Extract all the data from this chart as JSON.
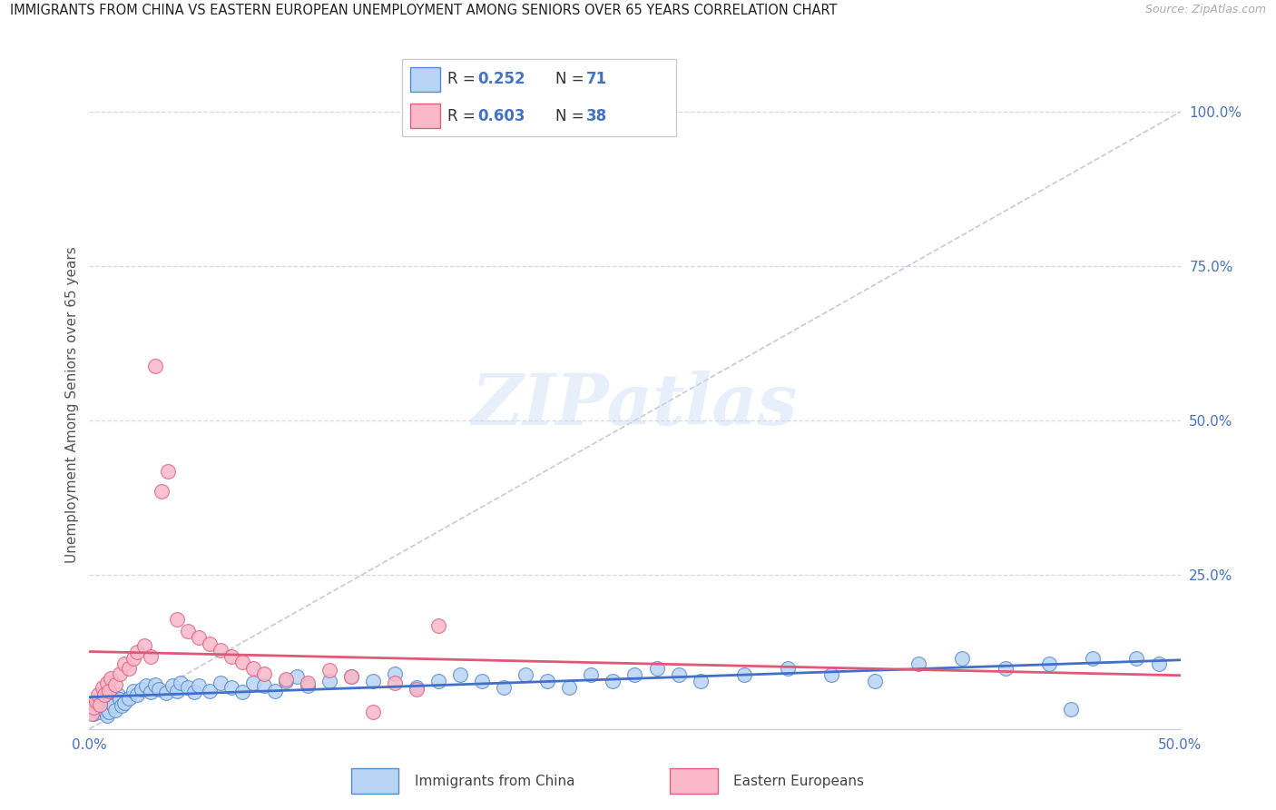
{
  "title": "IMMIGRANTS FROM CHINA VS EASTERN EUROPEAN UNEMPLOYMENT AMONG SENIORS OVER 65 YEARS CORRELATION CHART",
  "source": "Source: ZipAtlas.com",
  "ylabel": "Unemployment Among Seniors over 65 years",
  "xlim": [
    0.0,
    0.5
  ],
  "ylim": [
    0.0,
    1.05
  ],
  "watermark": "ZIPatlas",
  "legend_R1": "0.252",
  "legend_N1": "71",
  "legend_R2": "0.603",
  "legend_N2": "38",
  "color_china_fill": "#b8d4f4",
  "color_china_edge": "#5588cc",
  "color_eastern_fill": "#f8b8c8",
  "color_eastern_edge": "#e06080",
  "color_china_line": "#4070c8",
  "color_eastern_line": "#e05878",
  "color_diag": "#c8c8dc",
  "color_axis_blue": "#4472c4",
  "color_grid": "#d8d8e8",
  "china_x": [
    0.001,
    0.002,
    0.003,
    0.004,
    0.005,
    0.006,
    0.007,
    0.008,
    0.009,
    0.01,
    0.011,
    0.012,
    0.013,
    0.014,
    0.015,
    0.016,
    0.018,
    0.02,
    0.022,
    0.024,
    0.026,
    0.028,
    0.03,
    0.032,
    0.035,
    0.038,
    0.04,
    0.042,
    0.045,
    0.048,
    0.05,
    0.055,
    0.06,
    0.065,
    0.07,
    0.075,
    0.08,
    0.085,
    0.09,
    0.095,
    0.1,
    0.11,
    0.12,
    0.13,
    0.14,
    0.15,
    0.16,
    0.17,
    0.18,
    0.19,
    0.2,
    0.21,
    0.22,
    0.23,
    0.24,
    0.25,
    0.26,
    0.27,
    0.28,
    0.3,
    0.32,
    0.34,
    0.36,
    0.38,
    0.4,
    0.42,
    0.44,
    0.45,
    0.46,
    0.48,
    0.49
  ],
  "china_y": [
    0.03,
    0.025,
    0.035,
    0.04,
    0.028,
    0.032,
    0.038,
    0.022,
    0.028,
    0.045,
    0.038,
    0.03,
    0.055,
    0.048,
    0.038,
    0.042,
    0.05,
    0.062,
    0.055,
    0.065,
    0.07,
    0.06,
    0.072,
    0.065,
    0.058,
    0.07,
    0.062,
    0.075,
    0.068,
    0.06,
    0.07,
    0.062,
    0.075,
    0.068,
    0.06,
    0.075,
    0.07,
    0.062,
    0.078,
    0.085,
    0.07,
    0.078,
    0.085,
    0.078,
    0.09,
    0.068,
    0.078,
    0.088,
    0.078,
    0.068,
    0.088,
    0.078,
    0.068,
    0.088,
    0.078,
    0.088,
    0.098,
    0.088,
    0.078,
    0.088,
    0.098,
    0.088,
    0.078,
    0.105,
    0.115,
    0.098,
    0.105,
    0.032,
    0.115,
    0.115,
    0.105
  ],
  "eastern_x": [
    0.001,
    0.002,
    0.003,
    0.004,
    0.005,
    0.006,
    0.007,
    0.008,
    0.009,
    0.01,
    0.012,
    0.014,
    0.016,
    0.018,
    0.02,
    0.022,
    0.025,
    0.028,
    0.03,
    0.033,
    0.036,
    0.04,
    0.045,
    0.05,
    0.055,
    0.06,
    0.065,
    0.07,
    0.075,
    0.08,
    0.09,
    0.1,
    0.11,
    0.12,
    0.13,
    0.14,
    0.15,
    0.16
  ],
  "eastern_y": [
    0.025,
    0.035,
    0.045,
    0.055,
    0.04,
    0.068,
    0.055,
    0.075,
    0.062,
    0.082,
    0.072,
    0.09,
    0.105,
    0.098,
    0.115,
    0.125,
    0.135,
    0.118,
    0.588,
    0.385,
    0.418,
    0.178,
    0.158,
    0.148,
    0.138,
    0.128,
    0.118,
    0.108,
    0.098,
    0.09,
    0.08,
    0.075,
    0.095,
    0.085,
    0.028,
    0.075,
    0.065,
    0.168
  ]
}
